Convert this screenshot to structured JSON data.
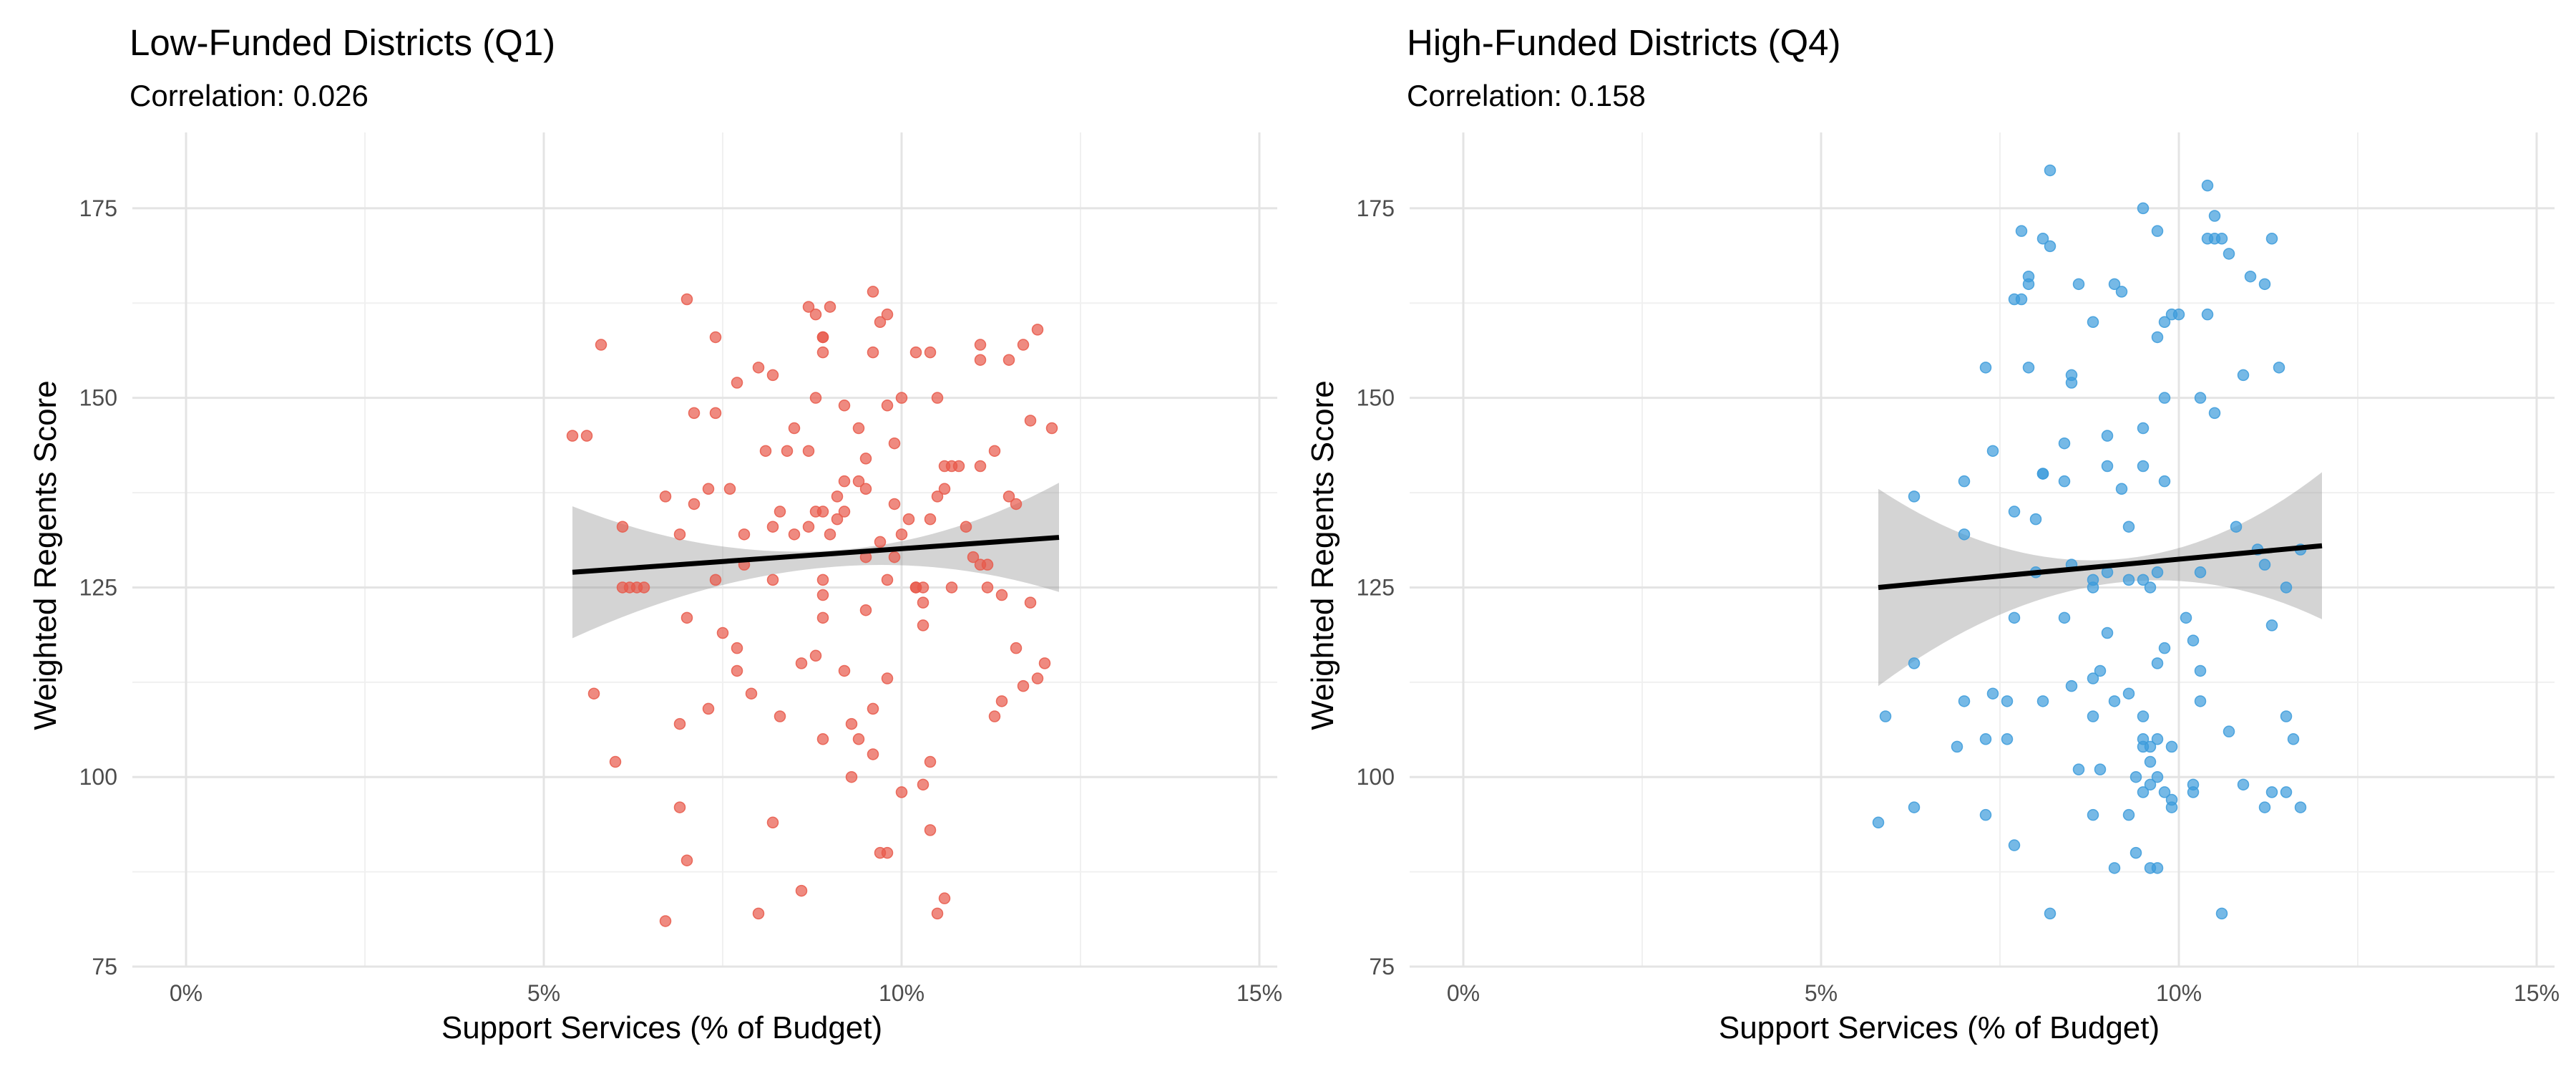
{
  "chart_data": [
    {
      "type": "scatter",
      "title": "Low-Funded Districts (Q1)",
      "subtitle": "Correlation: 0.026",
      "xlabel": "Support Services (% of Budget)",
      "ylabel": "Weighted Regents Score",
      "xlim": [
        -0.0075,
        0.1525
      ],
      "ylim": [
        75,
        185
      ],
      "x_ticks": [
        0,
        0.05,
        0.1,
        0.15
      ],
      "x_tick_labels": [
        "0%",
        "5%",
        "10%",
        "15%"
      ],
      "y_ticks": [
        75,
        100,
        125,
        150,
        175
      ],
      "y_tick_labels": [
        "75",
        "100",
        "125",
        "150",
        "175"
      ],
      "grid": true,
      "point_color": "#E8594A",
      "fit": {
        "line": [
          [
            0.054,
            127.0
          ],
          [
            0.122,
            131.6
          ]
        ],
        "ci_upper": [
          [
            0.054,
            135.7
          ],
          [
            0.09,
            129.8
          ],
          [
            0.122,
            138.8
          ]
        ],
        "ci_lower": [
          [
            0.054,
            118.3
          ],
          [
            0.09,
            127.6
          ],
          [
            0.122,
            124.4
          ]
        ],
        "line_color": "#000000",
        "ci_color": "#999999"
      },
      "points": [
        [
          0.054,
          145
        ],
        [
          0.056,
          145
        ],
        [
          0.058,
          157
        ],
        [
          0.057,
          111
        ],
        [
          0.06,
          102
        ],
        [
          0.061,
          133
        ],
        [
          0.062,
          125
        ],
        [
          0.061,
          125
        ],
        [
          0.063,
          125
        ],
        [
          0.064,
          125
        ],
        [
          0.067,
          137
        ],
        [
          0.067,
          81
        ],
        [
          0.069,
          132
        ],
        [
          0.069,
          107
        ],
        [
          0.069,
          96
        ],
        [
          0.07,
          121
        ],
        [
          0.07,
          163
        ],
        [
          0.07,
          89
        ],
        [
          0.071,
          148
        ],
        [
          0.071,
          136
        ],
        [
          0.073,
          138
        ],
        [
          0.073,
          109
        ],
        [
          0.074,
          158
        ],
        [
          0.074,
          148
        ],
        [
          0.074,
          126
        ],
        [
          0.075,
          119
        ],
        [
          0.076,
          138
        ],
        [
          0.077,
          152
        ],
        [
          0.077,
          114
        ],
        [
          0.077,
          117
        ],
        [
          0.078,
          132
        ],
        [
          0.078,
          128
        ],
        [
          0.079,
          111
        ],
        [
          0.08,
          154
        ],
        [
          0.08,
          82
        ],
        [
          0.081,
          143
        ],
        [
          0.082,
          153
        ],
        [
          0.082,
          126
        ],
        [
          0.082,
          133
        ],
        [
          0.082,
          94
        ],
        [
          0.083,
          108
        ],
        [
          0.083,
          135
        ],
        [
          0.084,
          143
        ],
        [
          0.085,
          146
        ],
        [
          0.085,
          132
        ],
        [
          0.086,
          115
        ],
        [
          0.086,
          85
        ],
        [
          0.087,
          162
        ],
        [
          0.087,
          143
        ],
        [
          0.087,
          133
        ],
        [
          0.088,
          135
        ],
        [
          0.088,
          161
        ],
        [
          0.088,
          150
        ],
        [
          0.088,
          116
        ],
        [
          0.089,
          158
        ],
        [
          0.089,
          156
        ],
        [
          0.089,
          135
        ],
        [
          0.089,
          121
        ],
        [
          0.089,
          124
        ],
        [
          0.089,
          126
        ],
        [
          0.089,
          105
        ],
        [
          0.089,
          158
        ],
        [
          0.09,
          162
        ],
        [
          0.09,
          132
        ],
        [
          0.091,
          137
        ],
        [
          0.091,
          134
        ],
        [
          0.092,
          139
        ],
        [
          0.092,
          135
        ],
        [
          0.092,
          114
        ],
        [
          0.092,
          149
        ],
        [
          0.093,
          107
        ],
        [
          0.093,
          100
        ],
        [
          0.094,
          139
        ],
        [
          0.094,
          146
        ],
        [
          0.094,
          105
        ],
        [
          0.095,
          129
        ],
        [
          0.095,
          142
        ],
        [
          0.095,
          138
        ],
        [
          0.095,
          122
        ],
        [
          0.096,
          164
        ],
        [
          0.096,
          156
        ],
        [
          0.096,
          109
        ],
        [
          0.096,
          103
        ],
        [
          0.097,
          160
        ],
        [
          0.097,
          90
        ],
        [
          0.097,
          131
        ],
        [
          0.098,
          161
        ],
        [
          0.098,
          149
        ],
        [
          0.098,
          126
        ],
        [
          0.098,
          113
        ],
        [
          0.098,
          90
        ],
        [
          0.099,
          144
        ],
        [
          0.099,
          136
        ],
        [
          0.099,
          129
        ],
        [
          0.1,
          150
        ],
        [
          0.1,
          132
        ],
        [
          0.1,
          98
        ],
        [
          0.101,
          134
        ],
        [
          0.102,
          156
        ],
        [
          0.102,
          125
        ],
        [
          0.102,
          125
        ],
        [
          0.103,
          125
        ],
        [
          0.103,
          120
        ],
        [
          0.103,
          99
        ],
        [
          0.103,
          123
        ],
        [
          0.104,
          156
        ],
        [
          0.104,
          134
        ],
        [
          0.104,
          93
        ],
        [
          0.104,
          102
        ],
        [
          0.105,
          137
        ],
        [
          0.105,
          150
        ],
        [
          0.105,
          82
        ],
        [
          0.106,
          84
        ],
        [
          0.106,
          141
        ],
        [
          0.106,
          138
        ],
        [
          0.107,
          141
        ],
        [
          0.107,
          125
        ],
        [
          0.108,
          141
        ],
        [
          0.109,
          133
        ],
        [
          0.11,
          129
        ],
        [
          0.111,
          157
        ],
        [
          0.111,
          155
        ],
        [
          0.111,
          128
        ],
        [
          0.111,
          141
        ],
        [
          0.112,
          128
        ],
        [
          0.112,
          125
        ],
        [
          0.113,
          143
        ],
        [
          0.113,
          108
        ],
        [
          0.114,
          110
        ],
        [
          0.114,
          124
        ],
        [
          0.115,
          137
        ],
        [
          0.115,
          155
        ],
        [
          0.116,
          136
        ],
        [
          0.116,
          117
        ],
        [
          0.117,
          112
        ],
        [
          0.117,
          157
        ],
        [
          0.118,
          123
        ],
        [
          0.118,
          147
        ],
        [
          0.119,
          159
        ],
        [
          0.119,
          113
        ],
        [
          0.12,
          115
        ],
        [
          0.121,
          146
        ]
      ]
    },
    {
      "type": "scatter",
      "title": "High-Funded Districts (Q4)",
      "subtitle": "Correlation: 0.158",
      "xlabel": "Support Services (% of Budget)",
      "ylabel": "Weighted Regents Score",
      "xlim": [
        -0.0075,
        0.1525
      ],
      "ylim": [
        75,
        185
      ],
      "x_ticks": [
        0,
        0.05,
        0.1,
        0.15
      ],
      "x_tick_labels": [
        "0%",
        "5%",
        "10%",
        "15%"
      ],
      "y_ticks": [
        75,
        100,
        125,
        150,
        175
      ],
      "y_tick_labels": [
        "75",
        "100",
        "125",
        "150",
        "175"
      ],
      "grid": true,
      "point_color": "#3C9BDB",
      "fit": {
        "line": [
          [
            0.058,
            125.0
          ],
          [
            0.12,
            130.5
          ]
        ],
        "ci_upper": [
          [
            0.058,
            138.0
          ],
          [
            0.09,
            128.6
          ],
          [
            0.12,
            140.2
          ]
        ],
        "ci_lower": [
          [
            0.058,
            112.0
          ],
          [
            0.09,
            125.4
          ],
          [
            0.12,
            120.8
          ]
        ],
        "line_color": "#000000",
        "ci_color": "#999999"
      },
      "points": [
        [
          0.058,
          94
        ],
        [
          0.059,
          108
        ],
        [
          0.063,
          137
        ],
        [
          0.063,
          115
        ],
        [
          0.063,
          96
        ],
        [
          0.069,
          104
        ],
        [
          0.07,
          139
        ],
        [
          0.07,
          132
        ],
        [
          0.07,
          110
        ],
        [
          0.073,
          154
        ],
        [
          0.073,
          105
        ],
        [
          0.073,
          95
        ],
        [
          0.074,
          111
        ],
        [
          0.074,
          143
        ],
        [
          0.076,
          105
        ],
        [
          0.076,
          110
        ],
        [
          0.077,
          163
        ],
        [
          0.077,
          135
        ],
        [
          0.077,
          121
        ],
        [
          0.077,
          91
        ],
        [
          0.078,
          172
        ],
        [
          0.078,
          163
        ],
        [
          0.079,
          166
        ],
        [
          0.079,
          165
        ],
        [
          0.079,
          154
        ],
        [
          0.08,
          134
        ],
        [
          0.08,
          127
        ],
        [
          0.081,
          171
        ],
        [
          0.081,
          140
        ],
        [
          0.081,
          140
        ],
        [
          0.081,
          110
        ],
        [
          0.082,
          170
        ],
        [
          0.082,
          82
        ],
        [
          0.082,
          180
        ],
        [
          0.084,
          144
        ],
        [
          0.084,
          139
        ],
        [
          0.084,
          121
        ],
        [
          0.085,
          153
        ],
        [
          0.085,
          152
        ],
        [
          0.085,
          128
        ],
        [
          0.085,
          112
        ],
        [
          0.086,
          101
        ],
        [
          0.086,
          165
        ],
        [
          0.088,
          126
        ],
        [
          0.088,
          125
        ],
        [
          0.088,
          113
        ],
        [
          0.088,
          108
        ],
        [
          0.088,
          95
        ],
        [
          0.088,
          160
        ],
        [
          0.089,
          114
        ],
        [
          0.089,
          101
        ],
        [
          0.09,
          119
        ],
        [
          0.09,
          145
        ],
        [
          0.09,
          141
        ],
        [
          0.09,
          127
        ],
        [
          0.091,
          165
        ],
        [
          0.091,
          88
        ],
        [
          0.091,
          110
        ],
        [
          0.092,
          138
        ],
        [
          0.092,
          164
        ],
        [
          0.093,
          133
        ],
        [
          0.093,
          126
        ],
        [
          0.093,
          111
        ],
        [
          0.093,
          95
        ],
        [
          0.094,
          100
        ],
        [
          0.094,
          90
        ],
        [
          0.095,
          175
        ],
        [
          0.095,
          146
        ],
        [
          0.095,
          141
        ],
        [
          0.095,
          126
        ],
        [
          0.095,
          108
        ],
        [
          0.095,
          105
        ],
        [
          0.095,
          104
        ],
        [
          0.095,
          98
        ],
        [
          0.096,
          88
        ],
        [
          0.096,
          125
        ],
        [
          0.096,
          102
        ],
        [
          0.096,
          99
        ],
        [
          0.096,
          104
        ],
        [
          0.097,
          172
        ],
        [
          0.097,
          158
        ],
        [
          0.097,
          127
        ],
        [
          0.097,
          115
        ],
        [
          0.097,
          105
        ],
        [
          0.097,
          100
        ],
        [
          0.097,
          88
        ],
        [
          0.098,
          160
        ],
        [
          0.098,
          150
        ],
        [
          0.098,
          139
        ],
        [
          0.098,
          117
        ],
        [
          0.098,
          98
        ],
        [
          0.099,
          104
        ],
        [
          0.099,
          97
        ],
        [
          0.099,
          96
        ],
        [
          0.099,
          161
        ],
        [
          0.1,
          161
        ],
        [
          0.101,
          121
        ],
        [
          0.102,
          118
        ],
        [
          0.102,
          99
        ],
        [
          0.102,
          98
        ],
        [
          0.103,
          114
        ],
        [
          0.103,
          110
        ],
        [
          0.103,
          150
        ],
        [
          0.103,
          127
        ],
        [
          0.104,
          161
        ],
        [
          0.104,
          171
        ],
        [
          0.104,
          178
        ],
        [
          0.105,
          174
        ],
        [
          0.105,
          171
        ],
        [
          0.105,
          148
        ],
        [
          0.106,
          82
        ],
        [
          0.106,
          171
        ],
        [
          0.107,
          169
        ],
        [
          0.107,
          106
        ],
        [
          0.108,
          133
        ],
        [
          0.109,
          99
        ],
        [
          0.109,
          153
        ],
        [
          0.11,
          166
        ],
        [
          0.111,
          130
        ],
        [
          0.112,
          165
        ],
        [
          0.112,
          128
        ],
        [
          0.112,
          96
        ],
        [
          0.113,
          171
        ],
        [
          0.113,
          98
        ],
        [
          0.113,
          120
        ],
        [
          0.114,
          154
        ],
        [
          0.115,
          125
        ],
        [
          0.115,
          98
        ],
        [
          0.115,
          108
        ],
        [
          0.116,
          105
        ],
        [
          0.117,
          130
        ],
        [
          0.117,
          96
        ]
      ]
    }
  ]
}
